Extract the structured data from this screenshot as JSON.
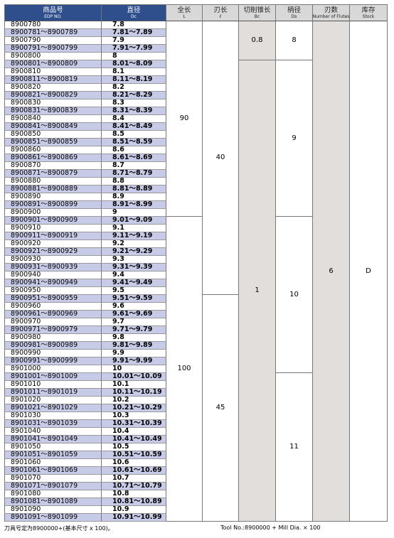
{
  "header": [
    {
      "title": "商品号",
      "sub": "EDP NO."
    },
    {
      "title": "直径",
      "sub": "Dc"
    },
    {
      "title": "全长",
      "sub": "L"
    },
    {
      "title": "刃长",
      "sub": "ℓ"
    },
    {
      "title": "切削锥长",
      "sub": "Bc"
    },
    {
      "title": "柄径",
      "sub": "Ds"
    },
    {
      "title": "刃数",
      "sub": "Number of Flutes"
    },
    {
      "title": "库存",
      "sub": "Stock"
    }
  ],
  "rows": [
    [
      "8900780",
      "7.8"
    ],
    [
      "8900781～8900789",
      "7.81～7.89"
    ],
    [
      "8900790",
      "7.9"
    ],
    [
      "8900791～8900799",
      "7.91～7.99"
    ],
    [
      "8900800",
      "8"
    ],
    [
      "8900801～8900809",
      "8.01～8.09"
    ],
    [
      "8900810",
      "8.1"
    ],
    [
      "8900811～8900819",
      "8.11～8.19"
    ],
    [
      "8900820",
      "8.2"
    ],
    [
      "8900821～8900829",
      "8.21～8.29"
    ],
    [
      "8900830",
      "8.3"
    ],
    [
      "8900831～8900839",
      "8.31～8.39"
    ],
    [
      "8900840",
      "8.4"
    ],
    [
      "8900841～8900849",
      "8.41～8.49"
    ],
    [
      "8900850",
      "8.5"
    ],
    [
      "8900851～8900859",
      "8.51～8.59"
    ],
    [
      "8900860",
      "8.6"
    ],
    [
      "8900861～8900869",
      "8.61～8.69"
    ],
    [
      "8900870",
      "8.7"
    ],
    [
      "8900871～8900879",
      "8.71～8.79"
    ],
    [
      "8900880",
      "8.8"
    ],
    [
      "8900881～8900889",
      "8.81～8.89"
    ],
    [
      "8900890",
      "8.9"
    ],
    [
      "8900891～8900899",
      "8.91～8.99"
    ],
    [
      "8900900",
      "9"
    ],
    [
      "8900901～8900909",
      "9.01～9.09"
    ],
    [
      "8900910",
      "9.1"
    ],
    [
      "8900911～8900919",
      "9.11～9.19"
    ],
    [
      "8900920",
      "9.2"
    ],
    [
      "8900921～8900929",
      "9.21～9.29"
    ],
    [
      "8900930",
      "9.3"
    ],
    [
      "8900931～8900939",
      "9.31～9.39"
    ],
    [
      "8900940",
      "9.4"
    ],
    [
      "8900941～8900949",
      "9.41～9.49"
    ],
    [
      "8900950",
      "9.5"
    ],
    [
      "8900951～8900959",
      "9.51～9.59"
    ],
    [
      "8900960",
      "9.6"
    ],
    [
      "8900961～8900969",
      "9.61～9.69"
    ],
    [
      "8900970",
      "9.7"
    ],
    [
      "8900971～8900979",
      "9.71～9.79"
    ],
    [
      "8900980",
      "9.8"
    ],
    [
      "8900981～8900989",
      "9.81～9.89"
    ],
    [
      "8900990",
      "9.9"
    ],
    [
      "8900991～8900999",
      "9.91～9.99"
    ],
    [
      "8901000",
      "10"
    ],
    [
      "8901001～8901009",
      "10.01～10.09"
    ],
    [
      "8901010",
      "10.1"
    ],
    [
      "8901011～8901019",
      "10.11～10.19"
    ],
    [
      "8901020",
      "10.2"
    ],
    [
      "8901021～8901029",
      "10.21～10.29"
    ],
    [
      "8901030",
      "10.3"
    ],
    [
      "8901031～8901039",
      "10.31～10.39"
    ],
    [
      "8901040",
      "10.4"
    ],
    [
      "8901041～8901049",
      "10.41～10.49"
    ],
    [
      "8901050",
      "10.5"
    ],
    [
      "8901051～8901059",
      "10.51～10.59"
    ],
    [
      "8901060",
      "10.6"
    ],
    [
      "8901061～8901069",
      "10.61～10.69"
    ],
    [
      "8901070",
      "10.7"
    ],
    [
      "8901071～8901079",
      "10.71～10.79"
    ],
    [
      "8901080",
      "10.8"
    ],
    [
      "8901081～8901089",
      "10.81～10.89"
    ],
    [
      "8901090",
      "10.9"
    ],
    [
      "8901091～8901099",
      "10.91～10.99"
    ]
  ],
  "merged": [
    [
      "90",
      "100"
    ],
    [
      "40",
      "45"
    ],
    [
      "0.8",
      "1"
    ],
    [
      "8",
      "9",
      "10",
      "11"
    ],
    [
      "6"
    ],
    [
      "D"
    ]
  ],
  "footer": {
    "left": "刀具号定为8900000+(基本尺寸 x 100)。",
    "right": "Tool No.:8900000 + Mill Dia. × 100"
  }
}
